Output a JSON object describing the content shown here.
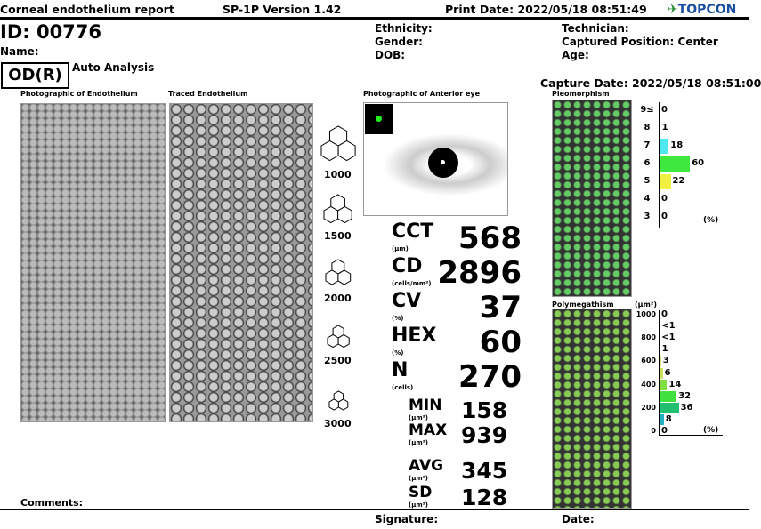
{
  "header": {
    "title": "Corneal endothelium report",
    "version": "SP-1P Version 1.42",
    "print_date": "Print Date: 2022/05/18 08:51:49",
    "logo": "TOPCON"
  },
  "patient": {
    "id": "ID: 00776",
    "name": "Name:",
    "eye": "OD(R)",
    "mode": "Auto Analysis",
    "ethnicity": "Ethnicity:",
    "gender": "Gender:",
    "dob": "DOB:",
    "technician": "Technician:",
    "position": "Captured Position: Center",
    "age": "Age:",
    "capture_date": "Capture Date: 2022/05/18 08:51:00"
  },
  "panels": {
    "photo": "Photographic of Endothelium",
    "traced": "Traced Endothelium",
    "anterior": "Photographic of Anterior eye",
    "pleo": "Pleomorphism",
    "poly": "Polymegathism"
  },
  "density_scale": [
    "1000",
    "1500",
    "2000",
    "2500",
    "3000"
  ],
  "metrics": [
    {
      "label": "CCT",
      "unit": "(μm)",
      "value": "568"
    },
    {
      "label": "CD",
      "unit": "(cells/mm²)",
      "value": "2896"
    },
    {
      "label": "CV",
      "unit": "(%)",
      "value": "37"
    },
    {
      "label": "HEX",
      "unit": "(%)",
      "value": "60"
    },
    {
      "label": "N",
      "unit": "(cells)",
      "value": "270"
    }
  ],
  "area_metrics": [
    {
      "label": "MIN",
      "unit": "(μm²)",
      "value": "158"
    },
    {
      "label": "MAX",
      "unit": "(μm²)",
      "value": "939"
    },
    {
      "label": "AVG",
      "unit": "(μm²)",
      "value": "345"
    },
    {
      "label": "SD",
      "unit": "(μm²)",
      "value": "128"
    }
  ],
  "chart_data": [
    {
      "type": "bar",
      "title": "Pleomorphism",
      "unit_label": "(%)",
      "categories": [
        "9≤",
        "8",
        "7",
        "6",
        "5",
        "4",
        "3"
      ],
      "values": [
        0,
        1,
        18,
        60,
        22,
        0,
        0
      ],
      "labels": [
        "0",
        "1",
        "18",
        "60",
        "22",
        "0",
        "0"
      ],
      "colors": [
        "#888",
        "#888",
        "#4de8f0",
        "#3ee83e",
        "#f0f040",
        "#888",
        "#888"
      ]
    },
    {
      "type": "bar",
      "title": "Polymegathism",
      "y_unit": "(μm²)",
      "unit_label": "(%)",
      "y_ticks": [
        "1000",
        "800",
        "600",
        "400",
        "200",
        "0"
      ],
      "values": [
        0,
        0.5,
        0.5,
        1,
        3,
        6,
        14,
        32,
        36,
        8,
        0
      ],
      "labels": [
        "0",
        "<1",
        "<1",
        "1",
        "3",
        "6",
        "14",
        "32",
        "36",
        "8",
        "0"
      ],
      "colors": [
        "#888",
        "#c9a",
        "#dda",
        "#ee9",
        "#dd7",
        "#cde060",
        "#7de040",
        "#40e040",
        "#20c070",
        "#20b0c0",
        "#888"
      ]
    }
  ],
  "footer": {
    "comments": "Comments:",
    "signature": "Signature:",
    "date": "Date:"
  }
}
